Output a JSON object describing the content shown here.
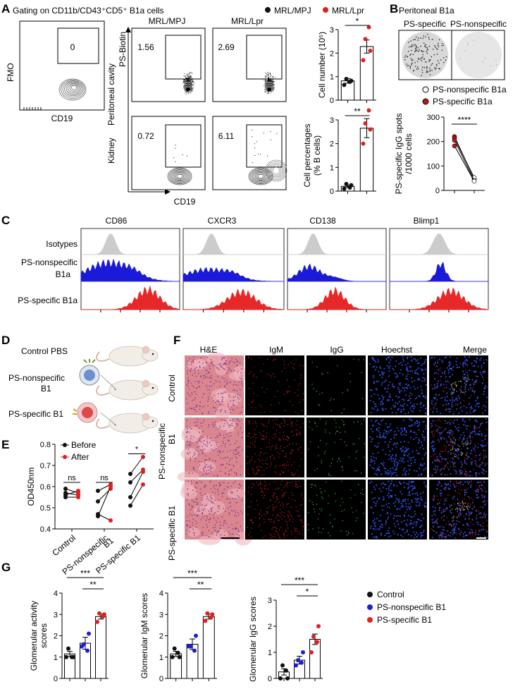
{
  "panels": {
    "A": "A",
    "B": "B",
    "C": "C",
    "D": "D",
    "E": "E",
    "F": "F",
    "G": "G"
  },
  "colors": {
    "red": "#e02020",
    "blue": "#1f1fd0",
    "black": "#111111",
    "green": "#3ec04a",
    "gray": "#c8c8c8"
  },
  "panel_a": {
    "title": "Gating on CD11b/CD43⁺CD5⁺ B1a cells",
    "legend": [
      {
        "label": "MRL/MPJ",
        "color": "#111111"
      },
      {
        "label": "MRL/Lpr",
        "color": "#e02020"
      }
    ],
    "fmo_ylabel": "FMO",
    "fmo_xlabel": "CD19",
    "fmo_gate": "0",
    "col_labels": [
      "MRL/MPJ",
      "MRL/Lpr"
    ],
    "row_labels": [
      "Peritoneal cavity",
      "Kidney"
    ],
    "ps_label": "PS-Biotin",
    "cd19_label": "CD19",
    "gates": [
      "1.56",
      "2.69",
      "0.72",
      "6.11"
    ]
  },
  "panel_b": {
    "title": "Peritoneal B1a",
    "well_labels": [
      "PS-specific",
      "PS-nonspecific"
    ],
    "legend": [
      {
        "label": "PS-nonspecific B1a",
        "fill": "#ffffff"
      },
      {
        "label": "PS-specific B1a",
        "fill": "#c01818"
      }
    ],
    "sig": "****"
  },
  "panel_c": {
    "markers": [
      "CD86",
      "CXCR3",
      "CD138",
      "Blimp1"
    ],
    "rows": [
      "Isotypes",
      "PS-nonspecific",
      "B1a",
      "PS-specific B1a"
    ]
  },
  "panel_d": {
    "groups": [
      "Control PBS",
      "PS-nonspecific",
      "B1",
      "PS-specific B1"
    ]
  },
  "panel_f": {
    "columns": [
      "H&E",
      "IgM",
      "IgG",
      "Hoechst",
      "Merge"
    ],
    "rows": [
      "Control",
      "PS-nonspecific",
      "B1",
      "PS-specific B1"
    ]
  },
  "panel_g": {
    "legend": [
      {
        "label": "Control",
        "color": "#111111"
      },
      {
        "label": "PS-nonspecific B1",
        "color": "#1f1fd0"
      },
      {
        "label": "PS-specific B1",
        "color": "#e02020"
      }
    ]
  },
  "chart_data": [
    {
      "id": "a_cell_number",
      "type": "bar",
      "categories": [
        "MRL/MPJ",
        "MRL/Lpr"
      ],
      "ylabel": "Cell number (10⁵)",
      "ylim": [
        0,
        3
      ],
      "yticks": [
        "0",
        "1",
        "2",
        "3"
      ],
      "values": [
        0.82,
        2.28
      ],
      "errors": [
        0.1,
        0.28
      ],
      "points": [
        [
          0.65,
          0.82,
          0.9,
          0.78
        ],
        [
          1.7,
          2.1,
          2.6,
          3.1
        ]
      ],
      "point_colors": [
        "#111111",
        "#e02020"
      ],
      "sig": [
        {
          "from": 0,
          "to": 1,
          "label": "*"
        }
      ]
    },
    {
      "id": "a_cell_percent",
      "type": "bar",
      "categories": [
        "MRL/MPJ",
        "MRL/Lpr"
      ],
      "ylabel": "Cell percentages",
      "ylabel2": "(% B cells)",
      "ylim": [
        0,
        3
      ],
      "yticks": [
        "0",
        "1",
        "2",
        "3"
      ],
      "values": [
        0.2,
        2.65
      ],
      "errors": [
        0.05,
        0.4
      ],
      "points": [
        [
          0.1,
          0.25,
          0.3,
          0.15
        ],
        [
          2.0,
          2.6,
          2.85,
          3.4
        ]
      ],
      "point_colors": [
        "#111111",
        "#e02020"
      ],
      "sig": [
        {
          "from": 0,
          "to": 1,
          "label": "**"
        }
      ]
    },
    {
      "id": "b_igg_spots",
      "type": "scatter",
      "ylabel": "PS-specific IgG spots",
      "ylabel2": "/1000 cells",
      "ylim": [
        0,
        300
      ],
      "yticks": [
        "0",
        "100",
        "200",
        "300"
      ],
      "pairs": [
        [
          220,
          48
        ],
        [
          214,
          52
        ],
        [
          205,
          40
        ],
        [
          182,
          38
        ]
      ],
      "sig": [
        {
          "from": 0,
          "to": 1,
          "label": "****"
        }
      ]
    },
    {
      "id": "e_od450",
      "type": "line",
      "categories": [
        "Control",
        "PS-nonspecific B1",
        "PS-specific B1"
      ],
      "ylabel": "OD450nm",
      "ylim": [
        0.4,
        0.8
      ],
      "yticks": [
        "0.4",
        "0.5",
        "0.6",
        "0.7",
        "0.8"
      ],
      "series": [
        {
          "name": "Before",
          "color": "#111111"
        },
        {
          "name": "After",
          "color": "#e02020"
        }
      ],
      "pairs": [
        [
          [
            0.59,
            0.57
          ],
          [
            0.56,
            0.58
          ],
          [
            0.55,
            0.55
          ],
          [
            0.57,
            0.56
          ]
        ],
        [
          [
            0.58,
            0.61
          ],
          [
            0.53,
            0.59
          ],
          [
            0.47,
            0.44
          ],
          [
            0.46,
            0.6
          ]
        ],
        [
          [
            0.66,
            0.74
          ],
          [
            0.62,
            0.68
          ],
          [
            0.55,
            0.67
          ],
          [
            0.51,
            0.61
          ]
        ]
      ],
      "sig": [
        {
          "group": 0,
          "label": "ns"
        },
        {
          "group": 1,
          "label": "ns"
        },
        {
          "group": 2,
          "label": "*"
        }
      ]
    },
    {
      "id": "g_activity",
      "type": "bar",
      "categories": [
        "Control",
        "PS-nonspecific B1",
        "PS-specific B1"
      ],
      "ylabel": "Glomerular activity",
      "ylabel2": "scores",
      "ylim": [
        0,
        4
      ],
      "yticks": [
        "0",
        "1",
        "2",
        "3",
        "4"
      ],
      "values": [
        1.15,
        1.65,
        2.9
      ],
      "errors": [
        0.12,
        0.28,
        0.12
      ],
      "points": [
        [
          1.0,
          1.0,
          1.4,
          1.0
        ],
        [
          1.5,
          2.1,
          1.6,
          1.3
        ],
        [
          2.65,
          3.0,
          3.05,
          2.9
        ]
      ],
      "sig": [
        {
          "from": 0,
          "to": 2,
          "label": "***"
        },
        {
          "from": 1,
          "to": 2,
          "label": "**"
        }
      ]
    },
    {
      "id": "g_igm",
      "type": "bar",
      "categories": [
        "Control",
        "PS-nonspecific B1",
        "PS-specific B1"
      ],
      "ylabel": "Glomerular IgM scores",
      "ylim": [
        0,
        4
      ],
      "yticks": [
        "0",
        "1",
        "2",
        "3",
        "4"
      ],
      "values": [
        1.15,
        1.6,
        2.9
      ],
      "errors": [
        0.12,
        0.25,
        0.12
      ],
      "points": [
        [
          1.0,
          1.0,
          1.4,
          1.2
        ],
        [
          1.5,
          2.0,
          1.5,
          1.3
        ],
        [
          2.7,
          3.0,
          3.05,
          2.85
        ]
      ],
      "sig": [
        {
          "from": 0,
          "to": 2,
          "label": "***"
        },
        {
          "from": 1,
          "to": 2,
          "label": "**"
        }
      ]
    },
    {
      "id": "g_igg",
      "type": "bar",
      "categories": [
        "Control",
        "PS-nonspecific B1",
        "PS-specific B1"
      ],
      "ylabel": "Glomerular IgG scores",
      "ylim": [
        0,
        3
      ],
      "yticks": [
        "0",
        "1",
        "2",
        "3"
      ],
      "values": [
        0.25,
        0.7,
        1.5
      ],
      "errors": [
        0.12,
        0.15,
        0.2
      ],
      "points": [
        [
          0.0,
          0.0,
          0.5,
          0.3
        ],
        [
          0.5,
          1.0,
          0.7,
          0.6
        ],
        [
          1.0,
          2.0,
          1.6,
          1.4
        ]
      ],
      "sig": [
        {
          "from": 0,
          "to": 2,
          "label": "***"
        },
        {
          "from": 1,
          "to": 2,
          "label": "*"
        }
      ]
    }
  ]
}
